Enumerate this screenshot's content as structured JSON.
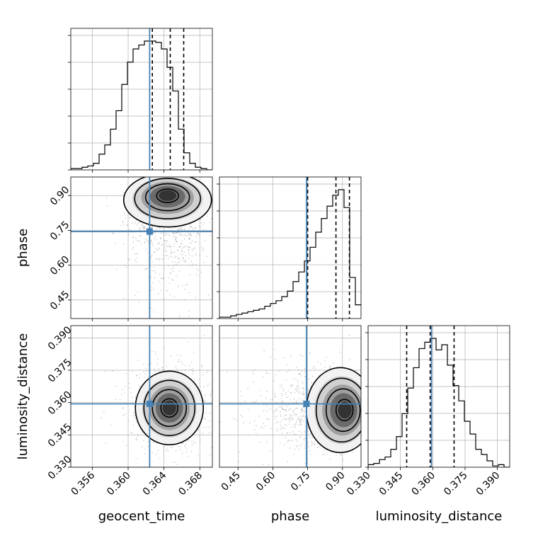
{
  "chart_data": {
    "type": "corner",
    "parameters": [
      {
        "name": "geocent_time",
        "label": "geocent_time",
        "range": [
          0.3536,
          0.3694
        ],
        "ticks": [
          "0.356",
          "0.360",
          "0.364",
          "0.368"
        ],
        "truth": 0.3624,
        "quantiles": [
          0.3627,
          0.3647,
          0.3662
        ]
      },
      {
        "name": "phase",
        "label": "phase",
        "range": [
          0.37,
          0.98
        ],
        "ticks": [
          "0.45",
          "0.60",
          "0.75",
          "0.90"
        ],
        "truth": 0.745,
        "quantiles": [
          0.75,
          0.872,
          0.93
        ]
      },
      {
        "name": "luminosity_distance",
        "label": "luminosity_distance",
        "range": [
          0.33,
          0.3957
        ],
        "ticks": [
          "0.330",
          "0.345",
          "0.360",
          "0.375",
          "0.390"
        ],
        "truth": 0.3594,
        "quantiles": [
          0.3479,
          0.3588,
          0.3699
        ]
      }
    ],
    "histograms": [
      {
        "parameter": "geocent_time",
        "bin_start": 0.3536,
        "bin_width": 0.000632,
        "counts": [
          1,
          1,
          2,
          3,
          5,
          12,
          19,
          31,
          45,
          65,
          82,
          92,
          95,
          98,
          98,
          97,
          92,
          78,
          60,
          31,
          13,
          5,
          2,
          1,
          0
        ]
      },
      {
        "parameter": "phase",
        "bin_start": 0.37,
        "bin_width": 0.0244,
        "counts": [
          1,
          1,
          2,
          3,
          4,
          5,
          6,
          7,
          9,
          11,
          13,
          16,
          20,
          27,
          34,
          42,
          52,
          63,
          73,
          82,
          90,
          94,
          81,
          30,
          10
        ]
      },
      {
        "parameter": "luminosity_distance",
        "bin_start": 0.33,
        "bin_width": 0.002628,
        "counts": [
          2,
          3,
          6,
          8,
          14,
          24,
          42,
          62,
          78,
          93,
          98,
          101,
          92,
          96,
          80,
          64,
          52,
          36,
          26,
          14,
          10,
          5,
          1,
          2,
          0
        ]
      }
    ],
    "density_peaks": [
      {
        "x": "geocent_time",
        "y": "phase",
        "peak": [
          0.3644,
          0.905
        ]
      },
      {
        "x": "geocent_time",
        "y": "luminosity_distance",
        "peak": [
          0.3646,
          0.3575
        ]
      },
      {
        "x": "phase",
        "y": "luminosity_distance",
        "peak": [
          0.915,
          0.3565
        ]
      }
    ],
    "colors": {
      "truth": "#4682b4",
      "contour": "#000000",
      "grid": "#b0b0b0",
      "hist": "#000000"
    },
    "grid": true
  }
}
